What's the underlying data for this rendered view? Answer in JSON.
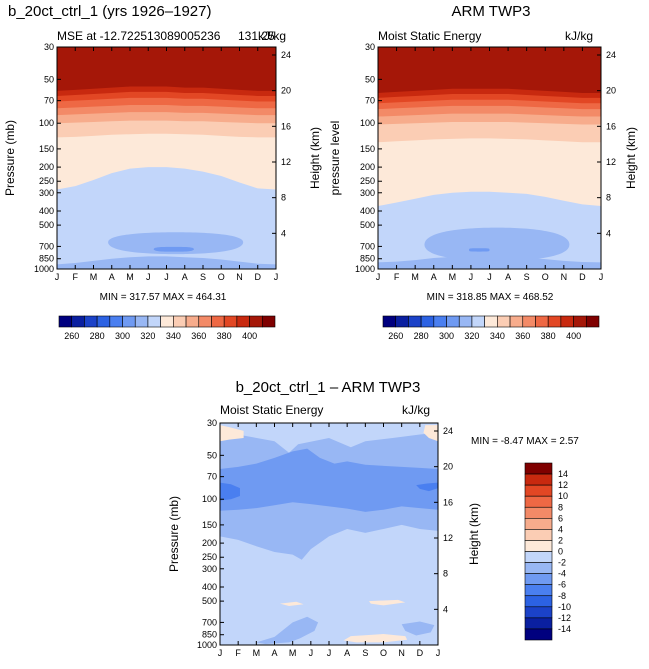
{
  "figure": {
    "panel_left_title": "b_20ct_ctrl_1 (yrs 1926–1927)",
    "panel_left_subtitle_left": "MSE at -12.722513089005236",
    "panel_left_subtitle_right": "kJ/kg",
    "panel_left_overlap_text": "131.25",
    "panel_left_stats": "MIN = 317.57  MAX = 464.31",
    "panel_right_title": "ARM TWP3",
    "panel_right_subtitle_left": "Moist Static Energy",
    "panel_right_subtitle_right": "kJ/kg",
    "panel_right_stats": "MIN = 318.85  MAX = 468.52",
    "panel_diff_title": "b_20ct_ctrl_1 – ARM TWP3",
    "panel_diff_subtitle_left": "Moist Static Energy",
    "panel_diff_subtitle_right": "kJ/kg",
    "panel_diff_stats": "MIN =   -8.47  MAX =    2.57"
  },
  "colors": {
    "full_scale": [
      "#00007f",
      "#0a1fa0",
      "#1b42c8",
      "#2c62e3",
      "#4a7ff0",
      "#6f9af2",
      "#98b7f4",
      "#c2d6fa",
      "#fde9d9",
      "#fbcdb4",
      "#f7ac8c",
      "#f38a67",
      "#ee6844",
      "#e24724",
      "#c8290f",
      "#a51708",
      "#7f0000"
    ],
    "diff_scale": [
      "#00007f",
      "#0a1fa0",
      "#1b42c8",
      "#2c62e3",
      "#4a7ff0",
      "#6f9af2",
      "#98b7f4",
      "#c2d6fa",
      "#fde9d9",
      "#fbcdb4",
      "#f7ac8c",
      "#f38a67",
      "#ee6844",
      "#e24724",
      "#c8290f",
      "#7f0000"
    ]
  },
  "chart_data": [
    {
      "type": "heatmap",
      "title": "b_20ct_ctrl_1 (yrs 1926–1927)",
      "subtitle": "MSE at -12.722513089005236",
      "units": "kJ/kg",
      "xlabel": "",
      "ylabel": "Pressure (mb)",
      "ylabel_right": "Height (km)",
      "x_ticks": [
        "J",
        "F",
        "M",
        "A",
        "M",
        "J",
        "J",
        "A",
        "S",
        "O",
        "N",
        "D",
        "J"
      ],
      "y_ticks": [
        30,
        50,
        70,
        100,
        150,
        200,
        250,
        300,
        400,
        500,
        700,
        850,
        1000
      ],
      "y_ticks_right": [
        24,
        20,
        16,
        12,
        8,
        4
      ],
      "y_scale": "log",
      "levels": [
        260,
        270,
        280,
        290,
        300,
        310,
        320,
        330,
        340,
        350,
        360,
        370,
        380,
        390,
        400
      ],
      "colorbar_labels": [
        260,
        280,
        300,
        320,
        340,
        360,
        380,
        400
      ],
      "min": 317.57,
      "max": 464.31,
      "boundaries": [
        {
          "level": 400,
          "p": [
            60,
            59,
            58,
            57,
            56,
            56,
            56,
            57,
            57,
            58,
            59,
            60,
            60
          ]
        },
        {
          "level": 390,
          "p": [
            65,
            64,
            63,
            62,
            61,
            61,
            61,
            62,
            62,
            63,
            64,
            65,
            65
          ]
        },
        {
          "level": 380,
          "p": [
            71,
            70,
            69,
            68,
            67,
            67,
            67,
            68,
            68,
            69,
            70,
            71,
            71
          ]
        },
        {
          "level": 370,
          "p": [
            79,
            78,
            77,
            76,
            75,
            75,
            75,
            76,
            76,
            77,
            78,
            79,
            79
          ]
        },
        {
          "level": 360,
          "p": [
            88,
            87,
            86,
            85,
            84,
            84,
            84,
            85,
            85,
            86,
            87,
            88,
            88
          ]
        },
        {
          "level": 350,
          "p": [
            100,
            99,
            98,
            97,
            96,
            96,
            96,
            97,
            97,
            98,
            99,
            100,
            100
          ]
        },
        {
          "level": 340,
          "p": [
            125,
            124,
            122,
            120,
            119,
            118,
            118,
            119,
            120,
            122,
            124,
            125,
            125
          ]
        },
        {
          "level": 330,
          "p": [
            285,
            270,
            245,
            220,
            205,
            200,
            200,
            205,
            215,
            230,
            255,
            280,
            285
          ]
        },
        {
          "level": 320,
          "p": [
            930,
            910,
            880,
            850,
            830,
            820,
            820,
            830,
            840,
            860,
            890,
            920,
            930
          ]
        }
      ],
      "islands": [
        {
          "level": 320,
          "x": [
            2.8,
            10.2
          ],
          "p_top": 560,
          "p_bot": 790,
          "p_mid": 655
        },
        {
          "level": 310,
          "x": [
            5.3,
            7.5
          ],
          "p_top": 705,
          "p_bot": 760,
          "p_mid": 730
        }
      ]
    },
    {
      "type": "heatmap",
      "title": "ARM TWP3",
      "subtitle": "Moist Static Energy",
      "units": "kJ/kg",
      "xlabel": "",
      "ylabel": "pressure level",
      "ylabel_right": "Height (km)",
      "x_ticks": [
        "J",
        "F",
        "M",
        "A",
        "M",
        "J",
        "J",
        "A",
        "S",
        "O",
        "N",
        "D",
        "J"
      ],
      "y_ticks": [
        30,
        50,
        70,
        100,
        150,
        200,
        250,
        300,
        400,
        500,
        700,
        850,
        1000
      ],
      "y_ticks_right": [
        24,
        20,
        16,
        12,
        8,
        4
      ],
      "y_scale": "log",
      "levels": [
        260,
        270,
        280,
        290,
        300,
        310,
        320,
        330,
        340,
        350,
        360,
        370,
        380,
        390,
        400
      ],
      "colorbar_labels": [
        260,
        280,
        300,
        320,
        340,
        360,
        380,
        400
      ],
      "min": 318.85,
      "max": 468.52,
      "boundaries": [
        {
          "level": 400,
          "p": [
            62,
            61,
            60,
            59,
            58,
            58,
            58,
            58,
            59,
            60,
            61,
            62,
            62
          ]
        },
        {
          "level": 390,
          "p": [
            67,
            66,
            65,
            64,
            63,
            63,
            63,
            63,
            64,
            65,
            66,
            67,
            67
          ]
        },
        {
          "level": 380,
          "p": [
            73,
            72,
            71,
            70,
            69,
            69,
            69,
            69,
            70,
            71,
            72,
            73,
            73
          ]
        },
        {
          "level": 370,
          "p": [
            80,
            79,
            78,
            77,
            76,
            76,
            76,
            76,
            77,
            78,
            79,
            80,
            80
          ]
        },
        {
          "level": 360,
          "p": [
            90,
            89,
            88,
            87,
            86,
            86,
            86,
            86,
            87,
            88,
            89,
            90,
            90
          ]
        },
        {
          "level": 350,
          "p": [
            102,
            101,
            100,
            99,
            98,
            98,
            98,
            98,
            99,
            100,
            101,
            102,
            102
          ]
        },
        {
          "level": 340,
          "p": [
            135,
            133,
            131,
            129,
            128,
            127,
            127,
            128,
            129,
            131,
            133,
            135,
            135
          ]
        },
        {
          "level": 330,
          "p": [
            370,
            350,
            330,
            310,
            300,
            295,
            295,
            300,
            305,
            320,
            340,
            360,
            370
          ]
        },
        {
          "level": 320,
          "p": [
            900,
            890,
            870,
            840,
            825,
            815,
            815,
            825,
            835,
            855,
            880,
            895,
            900
          ]
        }
      ],
      "islands": [
        {
          "level": 320,
          "x": [
            2.5,
            10.3
          ],
          "p_top": 520,
          "p_bot": 880,
          "p_mid": 680
        },
        {
          "level": 310,
          "x": [
            4.9,
            6.0
          ],
          "p_top": 720,
          "p_bot": 760,
          "p_mid": 740
        }
      ]
    },
    {
      "type": "heatmap",
      "title": "b_20ct_ctrl_1 – ARM TWP3",
      "subtitle": "Moist Static Energy",
      "units": "kJ/kg",
      "xlabel": "",
      "ylabel": "Pressure (mb)",
      "ylabel_right": "Height (km)",
      "x_ticks": [
        "J",
        "F",
        "M",
        "A",
        "M",
        "J",
        "J",
        "A",
        "S",
        "O",
        "N",
        "D",
        "J"
      ],
      "y_ticks": [
        30,
        50,
        70,
        100,
        150,
        200,
        250,
        300,
        400,
        500,
        700,
        850,
        1000
      ],
      "y_ticks_right": [
        24,
        20,
        16,
        12,
        8,
        4
      ],
      "y_scale": "log",
      "levels": [
        -14,
        -12,
        -10,
        -8,
        -6,
        -4,
        -2,
        0,
        2,
        4,
        6,
        8,
        10,
        12,
        14
      ],
      "colorbar_labels": [
        14,
        12,
        10,
        8,
        6,
        4,
        2,
        0,
        -2,
        -4,
        -6,
        -8,
        -10,
        -12,
        -14
      ],
      "min": -8.47,
      "max": 2.57,
      "background_level": -2,
      "regions": [
        {
          "value": -4,
          "poly": [
            [
              0,
              34
            ],
            [
              1.5,
              37
            ],
            [
              3,
              40
            ],
            [
              3.8,
              48
            ],
            [
              4.3,
              42
            ],
            [
              6,
              38
            ],
            [
              7.2,
              44
            ],
            [
              8,
              40
            ],
            [
              9.5,
              38
            ],
            [
              11,
              36
            ],
            [
              12,
              35
            ],
            [
              12,
              165
            ],
            [
              11,
              160
            ],
            [
              10,
              150
            ],
            [
              9,
              160
            ],
            [
              8,
              170
            ],
            [
              7,
              160
            ],
            [
              6,
              180
            ],
            [
              5,
              220
            ],
            [
              4.5,
              260
            ],
            [
              4,
              240
            ],
            [
              3,
              230
            ],
            [
              2,
              210
            ],
            [
              1,
              190
            ],
            [
              0,
              180
            ]
          ]
        },
        {
          "value": -6,
          "poly": [
            [
              0,
              62
            ],
            [
              1,
              60
            ],
            [
              2,
              57
            ],
            [
              3,
              52
            ],
            [
              4,
              47
            ],
            [
              4.8,
              45
            ],
            [
              5.5,
              52
            ],
            [
              6.3,
              57
            ],
            [
              7,
              55
            ],
            [
              8,
              58
            ],
            [
              9,
              59
            ],
            [
              10,
              60
            ],
            [
              11,
              61
            ],
            [
              12,
              62
            ],
            [
              12,
              118
            ],
            [
              11,
              115
            ],
            [
              10,
              112
            ],
            [
              9,
              118
            ],
            [
              8,
              122
            ],
            [
              7,
              116
            ],
            [
              6,
              112
            ],
            [
              5,
              108
            ],
            [
              4,
              105
            ],
            [
              3,
              110
            ],
            [
              2,
              115
            ],
            [
              1,
              118
            ],
            [
              0,
              120
            ]
          ]
        },
        {
          "value": -8,
          "poly": [
            [
              0,
              77
            ],
            [
              0.6,
              79
            ],
            [
              1.1,
              84
            ],
            [
              1.1,
              95
            ],
            [
              0.6,
              100
            ],
            [
              0,
              102
            ]
          ]
        },
        {
          "value": -8,
          "poly": [
            [
              10.8,
              80
            ],
            [
              11.4,
              78
            ],
            [
              12,
              77
            ],
            [
              12,
              84
            ],
            [
              11.5,
              88
            ],
            [
              11,
              85
            ]
          ]
        },
        {
          "value": 0,
          "poly": [
            [
              0,
              31
            ],
            [
              0.5,
              32
            ],
            [
              1.3,
              34
            ],
            [
              1.3,
              38
            ],
            [
              0.5,
              39
            ],
            [
              0,
              40
            ]
          ]
        },
        {
          "value": 0,
          "poly": [
            [
              11.3,
              31
            ],
            [
              12,
              31
            ],
            [
              12,
              40
            ],
            [
              11.5,
              38
            ],
            [
              11.2,
              35
            ]
          ]
        },
        {
          "value": 0,
          "poly": [
            [
              3.3,
              520
            ],
            [
              4.2,
              505
            ],
            [
              4.6,
              525
            ],
            [
              3.8,
              540
            ]
          ]
        },
        {
          "value": 0,
          "poly": [
            [
              8.2,
              500
            ],
            [
              9.8,
              490
            ],
            [
              10.2,
              510
            ],
            [
              9,
              535
            ],
            [
              8.3,
              520
            ]
          ]
        },
        {
          "value": 0,
          "poly": [
            [
              7.2,
              870
            ],
            [
              9,
              840
            ],
            [
              10.2,
              870
            ],
            [
              10.3,
              920
            ],
            [
              9,
              960
            ],
            [
              7.5,
              960
            ],
            [
              6.8,
              930
            ]
          ]
        },
        {
          "value": -4,
          "poly": [
            [
              4,
              700
            ],
            [
              4.8,
              640
            ],
            [
              5.4,
              700
            ],
            [
              5.2,
              800
            ],
            [
              4.4,
              900
            ],
            [
              3.8,
              960
            ],
            [
              2.5,
              985
            ],
            [
              2,
              960
            ],
            [
              3,
              880
            ]
          ]
        },
        {
          "value": -4,
          "poly": [
            [
              10,
              720
            ],
            [
              11,
              690
            ],
            [
              11.8,
              730
            ],
            [
              11.6,
              820
            ],
            [
              10.8,
              860
            ],
            [
              10.2,
              800
            ]
          ]
        }
      ]
    }
  ]
}
